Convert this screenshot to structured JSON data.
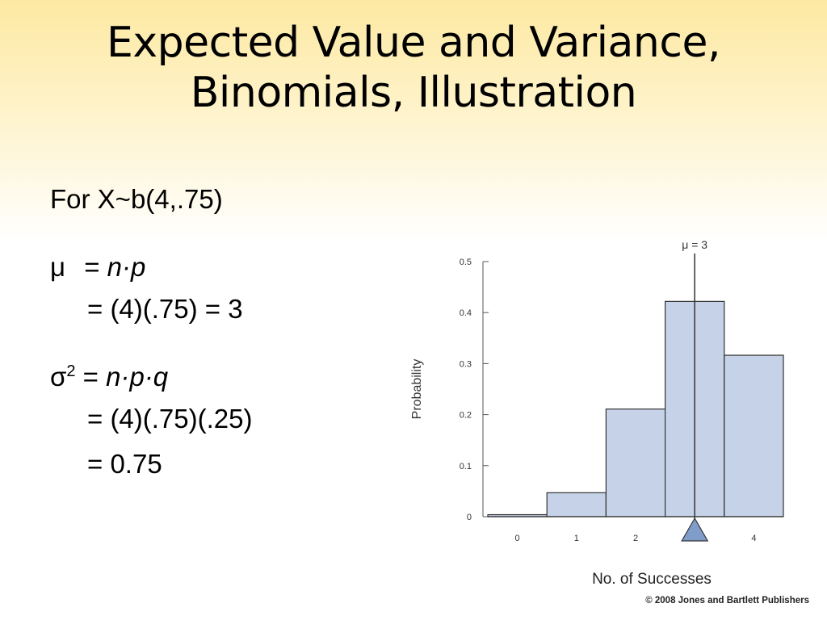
{
  "slide": {
    "title_line1": "Expected Value and Variance,",
    "title_line2": "Binomials, Illustration",
    "for_text": "For X~b(4,.75)",
    "mu_symbol": "μ",
    "mu_eq": "=",
    "mu_formula": "n·p",
    "mu_result": "= (4)(.75) = 3",
    "sigma_symbol": "σ",
    "sigma_sup": "2",
    "sigma_eq": "=",
    "sigma_formula": "n·p·q",
    "sigma_line2": "= (4)(.75)(.25)",
    "sigma_line3": "= 0.75",
    "copyright": "© 2008 Jones and Bartlett Publishers"
  },
  "chart_data": {
    "type": "bar",
    "categories": [
      "0",
      "1",
      "2",
      "3",
      "4"
    ],
    "x_tick_labels": [
      "0",
      "1",
      "2",
      "",
      "4"
    ],
    "values": [
      0.0039,
      0.0469,
      0.2109,
      0.4219,
      0.3164
    ],
    "xlabel": "No. of Successes",
    "ylabel": "Probability",
    "ylim": [
      0,
      0.5
    ],
    "y_ticks": [
      0,
      0.1,
      0.2,
      0.3,
      0.4,
      0.5
    ],
    "y_tick_labels": [
      "0",
      "0.1",
      "0.2",
      "0.3",
      "0.4",
      "0.5"
    ],
    "mean": 3,
    "mean_label": "μ = 3",
    "bar_fill": "#c6d2e8",
    "bar_stroke": "#333333",
    "marker_fill": "#7f9ccb",
    "grid": false
  }
}
